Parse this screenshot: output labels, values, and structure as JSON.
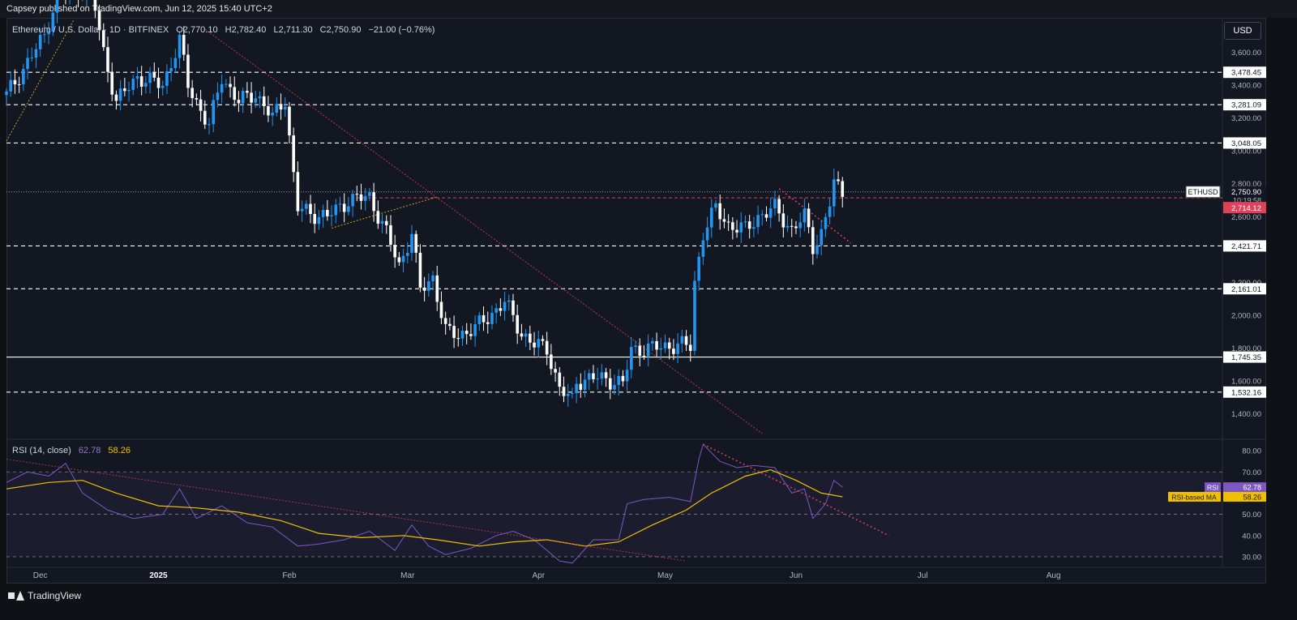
{
  "header": {
    "published": "Capsey published on TradingView.com, Jun 12, 2025 15:40 UTC+2"
  },
  "legend": {
    "symbol": "Ethereum / U.S. Dollar · 1D · BITFINEX",
    "open": "O2,770.10",
    "high": "H2,782.40",
    "low": "L2,711.30",
    "close": "C2,750.90",
    "change": "−21.00 (−0.76%)"
  },
  "currency": "USD",
  "footer": {
    "brand": "TradingView"
  },
  "colors": {
    "up": "#2196f3",
    "down": "#ffffff",
    "rsi": "#7e57c2",
    "rsi_ma": "#f0c000",
    "trend": "#e0405a",
    "bg": "#131722"
  },
  "chart_data": [
    {
      "type": "candlestick",
      "symbol": "ETHUSD",
      "x_axis": [
        "Dec",
        "2025",
        "Feb",
        "Mar",
        "Apr",
        "May",
        "Jun",
        "Jul",
        "Aug"
      ],
      "y_ticks": [
        "3,600.00",
        "3,400.00",
        "3,200.00",
        "3,000.00",
        "2,800.00",
        "2,600.00",
        "2,200.00",
        "2,000.00",
        "1,800.00",
        "1,600.00",
        "1,400.00"
      ],
      "y_range": [
        1250,
        3800
      ],
      "levels": [
        {
          "label": "3,478.45",
          "value": 3478.45,
          "style": "dashed"
        },
        {
          "label": "3,281.09",
          "value": 3281.09,
          "style": "dashed"
        },
        {
          "label": "3,048.05",
          "value": 3048.05,
          "style": "dashed"
        },
        {
          "label": "2,421.71",
          "value": 2421.71,
          "style": "dashed"
        },
        {
          "label": "2,161.01",
          "value": 2161.01,
          "style": "dashed"
        },
        {
          "label": "1,745.35",
          "value": 1745.35,
          "style": "solid"
        },
        {
          "label": "1,532.16",
          "value": 1532.16,
          "style": "dashed"
        }
      ],
      "current_price": {
        "symbol": "ETHUSD",
        "label": "2,750.90",
        "value": 2750.9,
        "countdown": "10:19:58"
      },
      "red_level": {
        "label": "2,714.12",
        "value": 2714.12
      },
      "price_path": [
        [
          "2024-11-26",
          3340
        ],
        [
          "2024-12-05",
          3700
        ],
        [
          "2024-12-08",
          3950
        ],
        [
          "2024-12-16",
          4000
        ],
        [
          "2024-12-19",
          3600
        ],
        [
          "2024-12-22",
          3300
        ],
        [
          "2024-12-27",
          3450
        ],
        [
          "2025-01-02",
          3400
        ],
        [
          "2025-01-06",
          3670
        ],
        [
          "2025-01-08",
          3400
        ],
        [
          "2025-01-13",
          3150
        ],
        [
          "2025-01-16",
          3450
        ],
        [
          "2025-01-20",
          3300
        ],
        [
          "2025-01-24",
          3350
        ],
        [
          "2025-01-28",
          3200
        ],
        [
          "2025-01-31",
          3320
        ],
        [
          "2025-02-02",
          2850
        ],
        [
          "2025-02-03",
          2650
        ],
        [
          "2025-02-06",
          2620
        ],
        [
          "2025-02-10",
          2600
        ],
        [
          "2025-02-15",
          2700
        ],
        [
          "2025-02-20",
          2720
        ],
        [
          "2025-02-24",
          2500
        ],
        [
          "2025-02-27",
          2300
        ],
        [
          "2025-03-02",
          2500
        ],
        [
          "2025-03-04",
          2150
        ],
        [
          "2025-03-07",
          2230
        ],
        [
          "2025-03-10",
          1900
        ],
        [
          "2025-03-13",
          1880
        ],
        [
          "2025-03-17",
          1920
        ],
        [
          "2025-03-24",
          2080
        ],
        [
          "2025-03-28",
          1890
        ],
        [
          "2025-03-31",
          1820
        ],
        [
          "2025-04-03",
          1800
        ],
        [
          "2025-04-06",
          1550
        ],
        [
          "2025-04-09",
          1480
        ],
        [
          "2025-04-10",
          1600
        ],
        [
          "2025-04-15",
          1620
        ],
        [
          "2025-04-19",
          1600
        ],
        [
          "2025-04-21",
          1580
        ],
        [
          "2025-04-23",
          1790
        ],
        [
          "2025-04-28",
          1800
        ],
        [
          "2025-05-04",
          1820
        ],
        [
          "2025-05-07",
          1810
        ],
        [
          "2025-05-08",
          2200
        ],
        [
          "2025-05-10",
          2500
        ],
        [
          "2025-05-13",
          2650
        ],
        [
          "2025-05-16",
          2550
        ],
        [
          "2025-05-20",
          2520
        ],
        [
          "2025-05-23",
          2600
        ],
        [
          "2025-05-27",
          2650
        ],
        [
          "2025-05-31",
          2520
        ],
        [
          "2025-06-03",
          2600
        ],
        [
          "2025-06-05",
          2420
        ],
        [
          "2025-06-07",
          2500
        ],
        [
          "2025-06-09",
          2680
        ],
        [
          "2025-06-10",
          2800
        ],
        [
          "2025-06-12",
          2750.9
        ]
      ]
    },
    {
      "type": "line",
      "title": "RSI (14, close)",
      "rsi_value": "62.78",
      "ma_value": "58.26",
      "y_ticks": [
        "80.00",
        "70.00",
        "60.00",
        "50.00",
        "40.00",
        "30.00"
      ],
      "y_range": [
        25,
        85
      ],
      "band": [
        30,
        70
      ],
      "series": [
        {
          "name": "RSI",
          "label": "62.78",
          "values": [
            [
              "2024-11-26",
              65
            ],
            [
              "2024-12-01",
              70
            ],
            [
              "2024-12-06",
              68
            ],
            [
              "2024-12-10",
              74
            ],
            [
              "2024-12-14",
              60
            ],
            [
              "2024-12-20",
              52
            ],
            [
              "2024-12-26",
              48
            ],
            [
              "2025-01-02",
              50
            ],
            [
              "2025-01-06",
              62
            ],
            [
              "2025-01-10",
              48
            ],
            [
              "2025-01-16",
              54
            ],
            [
              "2025-01-22",
              46
            ],
            [
              "2025-01-28",
              44
            ],
            [
              "2025-02-03",
              35
            ],
            [
              "2025-02-08",
              36
            ],
            [
              "2025-02-14",
              38
            ],
            [
              "2025-02-20",
              42
            ],
            [
              "2025-02-26",
              33
            ],
            [
              "2025-03-02",
              45
            ],
            [
              "2025-03-06",
              35
            ],
            [
              "2025-03-10",
              31
            ],
            [
              "2025-03-16",
              34
            ],
            [
              "2025-03-22",
              40
            ],
            [
              "2025-03-26",
              42
            ],
            [
              "2025-03-31",
              38
            ],
            [
              "2025-04-06",
              28
            ],
            [
              "2025-04-09",
              27
            ],
            [
              "2025-04-14",
              38
            ],
            [
              "2025-04-20",
              38
            ],
            [
              "2025-04-22",
              55
            ],
            [
              "2025-04-26",
              57
            ],
            [
              "2025-05-02",
              58
            ],
            [
              "2025-05-07",
              56
            ],
            [
              "2025-05-09",
              76
            ],
            [
              "2025-05-10",
              83
            ],
            [
              "2025-05-14",
              75
            ],
            [
              "2025-05-18",
              72
            ],
            [
              "2025-05-22",
              73
            ],
            [
              "2025-05-27",
              72
            ],
            [
              "2025-05-31",
              60
            ],
            [
              "2025-06-03",
              62
            ],
            [
              "2025-06-05",
              48
            ],
            [
              "2025-06-08",
              55
            ],
            [
              "2025-06-10",
              66
            ],
            [
              "2025-06-12",
              62.78
            ]
          ]
        },
        {
          "name": "RSI-based MA",
          "label": "58.26",
          "values": [
            [
              "2024-11-26",
              62
            ],
            [
              "2024-12-06",
              65
            ],
            [
              "2024-12-14",
              66
            ],
            [
              "2024-12-22",
              60
            ],
            [
              "2025-01-01",
              54
            ],
            [
              "2025-01-10",
              53
            ],
            [
              "2025-01-20",
              51
            ],
            [
              "2025-01-30",
              47
            ],
            [
              "2025-02-08",
              41
            ],
            [
              "2025-02-18",
              39
            ],
            [
              "2025-02-28",
              40
            ],
            [
              "2025-03-08",
              38
            ],
            [
              "2025-03-18",
              35
            ],
            [
              "2025-03-26",
              37
            ],
            [
              "2025-04-03",
              38
            ],
            [
              "2025-04-12",
              35
            ],
            [
              "2025-04-20",
              37
            ],
            [
              "2025-04-28",
              45
            ],
            [
              "2025-05-06",
              52
            ],
            [
              "2025-05-12",
              60
            ],
            [
              "2025-05-20",
              68
            ],
            [
              "2025-05-26",
              71
            ],
            [
              "2025-06-01",
              66
            ],
            [
              "2025-06-07",
              60
            ],
            [
              "2025-06-12",
              58.26
            ]
          ]
        }
      ]
    }
  ]
}
